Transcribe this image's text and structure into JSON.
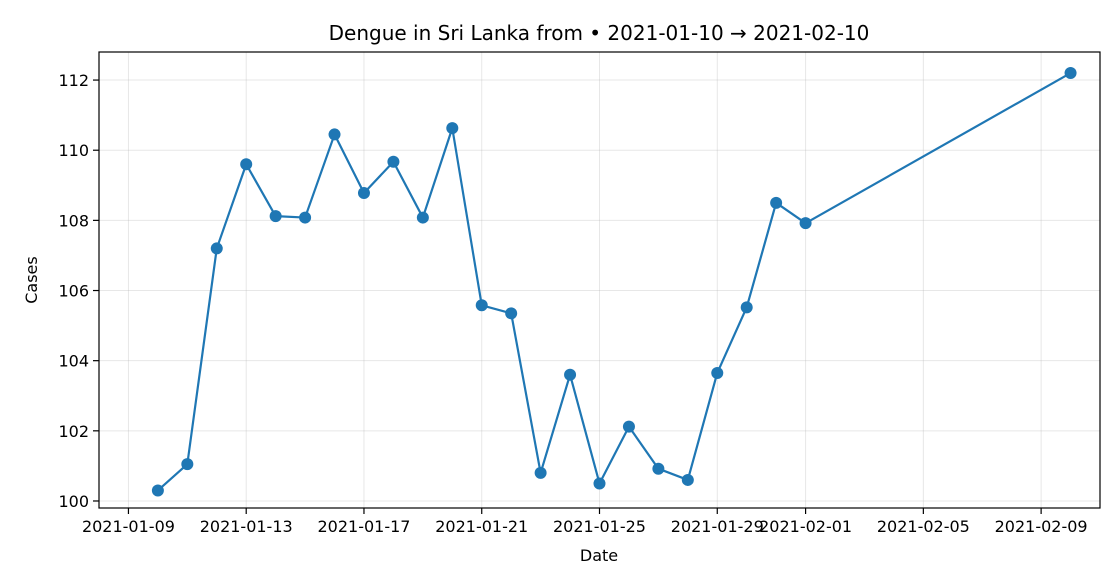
{
  "chart_data": {
    "type": "line",
    "title": "Dengue in Sri Lanka from • 2021-01-10 → 2021-02-10",
    "xlabel": "Date",
    "ylabel": "Cases",
    "x_type": "date",
    "xlim": [
      "2021-01-08",
      "2021-02-11"
    ],
    "ylim": [
      99.8,
      112.8
    ],
    "grid": true,
    "color": "#1f77b4",
    "x_ticks": [
      "2021-01-09",
      "2021-01-13",
      "2021-01-17",
      "2021-01-21",
      "2021-01-25",
      "2021-01-29",
      "2021-02-01",
      "2021-02-05",
      "2021-02-09"
    ],
    "y_ticks": [
      100,
      102,
      104,
      106,
      108,
      110,
      112
    ],
    "series": [
      {
        "x": [
          "2021-01-10",
          "2021-01-11",
          "2021-01-12",
          "2021-01-13",
          "2021-01-14",
          "2021-01-15",
          "2021-01-16",
          "2021-01-17",
          "2021-01-18",
          "2021-01-19",
          "2021-01-20",
          "2021-01-21",
          "2021-01-22",
          "2021-01-23",
          "2021-01-24",
          "2021-01-25",
          "2021-01-26",
          "2021-01-27",
          "2021-01-28",
          "2021-01-29",
          "2021-01-30",
          "2021-01-31",
          "2021-02-01",
          "2021-02-10"
        ],
        "y": [
          100.3,
          101.05,
          107.2,
          109.6,
          108.12,
          108.08,
          110.45,
          108.78,
          109.67,
          108.08,
          110.63,
          105.58,
          105.35,
          100.8,
          103.6,
          100.5,
          102.12,
          100.92,
          100.6,
          103.65,
          105.52,
          108.5,
          107.92,
          112.2
        ]
      }
    ]
  }
}
